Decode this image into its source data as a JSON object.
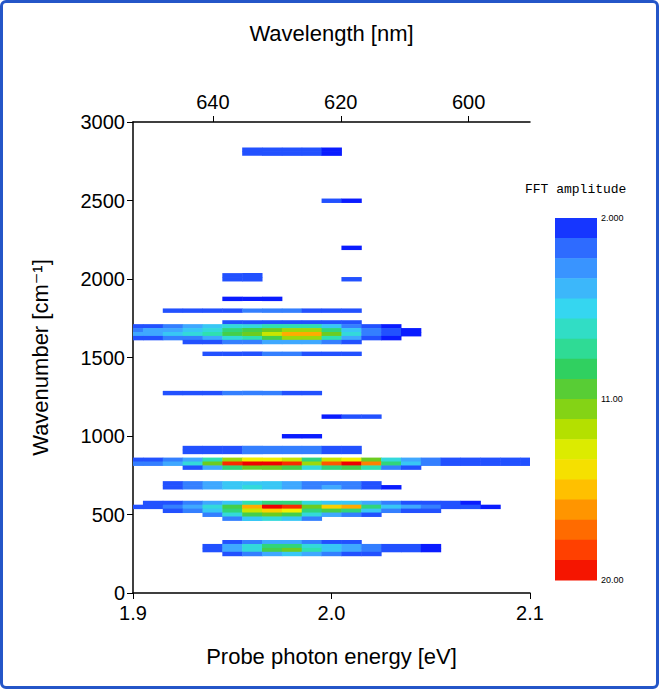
{
  "chart_data": {
    "type": "heatmap",
    "xlabel": "Probe photon energy [eV]",
    "ylabel": "Wavenumber [cm⁻¹]",
    "x2label": "Wavelength [nm]",
    "xlim": [
      1.9,
      2.1
    ],
    "xticks": [
      1.9,
      {
        "value": 2.0,
        "label": "2.0"
      },
      2.1
    ],
    "ylim": [
      0,
      3000
    ],
    "yticks": [
      0,
      500,
      1000,
      1500,
      2000,
      2500,
      3000
    ],
    "x2lim": [
      652.5,
      590.4
    ],
    "x2ticks": [
      640,
      620,
      600
    ],
    "grid": false,
    "colorbar": {
      "label": "FFT amplitude",
      "lim": [
        2,
        20
      ],
      "ticks": [
        {
          "value": 2,
          "label": "2.000"
        },
        {
          "value": 11,
          "label": "11.00"
        },
        {
          "value": 20,
          "label": "20.00"
        }
      ]
    },
    "cells": [
      [
        1.96,
        2825,
        3
      ],
      [
        1.97,
        2825,
        3
      ],
      [
        1.98,
        2825,
        3
      ],
      [
        1.99,
        2825,
        3
      ],
      [
        2.0,
        2825,
        2
      ],
      [
        1.96,
        2800,
        3
      ],
      [
        1.97,
        2800,
        3
      ],
      [
        1.98,
        2800,
        3
      ],
      [
        1.99,
        2800,
        3
      ],
      [
        2.0,
        2800,
        2
      ],
      [
        2.0,
        2500,
        3
      ],
      [
        2.01,
        2500,
        2
      ],
      [
        2.01,
        2200,
        2
      ],
      [
        1.95,
        2025,
        3
      ],
      [
        1.96,
        2025,
        3
      ],
      [
        1.95,
        2000,
        3
      ],
      [
        1.96,
        2000,
        3
      ],
      [
        2.01,
        2000,
        3
      ],
      [
        1.95,
        1875,
        2
      ],
      [
        1.96,
        1875,
        2
      ],
      [
        1.97,
        1875,
        2
      ],
      [
        1.92,
        1800,
        3
      ],
      [
        1.93,
        1800,
        3
      ],
      [
        1.94,
        1800,
        3
      ],
      [
        1.95,
        1800,
        3
      ],
      [
        1.96,
        1800,
        4
      ],
      [
        1.97,
        1800,
        4
      ],
      [
        1.98,
        1800,
        4
      ],
      [
        1.99,
        1800,
        3
      ],
      [
        2.0,
        1800,
        3
      ],
      [
        2.01,
        1800,
        3
      ],
      [
        1.95,
        1725,
        3
      ],
      [
        1.96,
        1725,
        3
      ],
      [
        1.97,
        1725,
        3
      ],
      [
        1.98,
        1725,
        3
      ],
      [
        1.99,
        1725,
        3
      ],
      [
        2.0,
        1725,
        3
      ],
      [
        2.01,
        1725,
        3
      ],
      [
        1.9,
        1700,
        3
      ],
      [
        1.91,
        1700,
        3
      ],
      [
        1.92,
        1700,
        4
      ],
      [
        1.93,
        1700,
        5
      ],
      [
        1.94,
        1700,
        6
      ],
      [
        1.95,
        1700,
        7
      ],
      [
        1.96,
        1700,
        7
      ],
      [
        1.97,
        1700,
        8
      ],
      [
        1.98,
        1700,
        8
      ],
      [
        1.99,
        1700,
        8
      ],
      [
        2.0,
        1700,
        6
      ],
      [
        2.01,
        1700,
        4
      ],
      [
        2.02,
        1700,
        3
      ],
      [
        2.03,
        1700,
        2
      ],
      [
        1.9,
        1675,
        4
      ],
      [
        1.91,
        1675,
        5
      ],
      [
        1.92,
        1675,
        5
      ],
      [
        1.93,
        1675,
        6
      ],
      [
        1.94,
        1675,
        7
      ],
      [
        1.95,
        1675,
        9
      ],
      [
        1.96,
        1675,
        10
      ],
      [
        1.97,
        1675,
        11
      ],
      [
        1.98,
        1675,
        12
      ],
      [
        1.99,
        1675,
        12
      ],
      [
        2.0,
        1675,
        9
      ],
      [
        2.01,
        1675,
        6
      ],
      [
        2.02,
        1675,
        4
      ],
      [
        2.03,
        1675,
        3
      ],
      [
        2.04,
        1675,
        2
      ],
      [
        1.9,
        1650,
        5
      ],
      [
        1.91,
        1650,
        5
      ],
      [
        1.92,
        1650,
        6
      ],
      [
        1.93,
        1650,
        7
      ],
      [
        1.94,
        1650,
        8
      ],
      [
        1.95,
        1650,
        10
      ],
      [
        1.96,
        1650,
        11
      ],
      [
        1.97,
        1650,
        13
      ],
      [
        1.98,
        1650,
        16
      ],
      [
        1.99,
        1650,
        16
      ],
      [
        2.0,
        1650,
        11
      ],
      [
        2.01,
        1650,
        7
      ],
      [
        2.02,
        1650,
        4
      ],
      [
        2.03,
        1650,
        3
      ],
      [
        2.04,
        1650,
        2
      ],
      [
        1.9,
        1625,
        3
      ],
      [
        1.91,
        1625,
        3
      ],
      [
        1.92,
        1625,
        4
      ],
      [
        1.93,
        1625,
        4
      ],
      [
        1.94,
        1625,
        5
      ],
      [
        1.95,
        1625,
        7
      ],
      [
        1.96,
        1625,
        8
      ],
      [
        1.97,
        1625,
        10
      ],
      [
        1.98,
        1625,
        12
      ],
      [
        1.99,
        1625,
        12
      ],
      [
        2.0,
        1625,
        8
      ],
      [
        2.01,
        1625,
        5
      ],
      [
        2.02,
        1625,
        3
      ],
      [
        2.03,
        1625,
        2
      ],
      [
        1.93,
        1600,
        3
      ],
      [
        1.94,
        1600,
        3
      ],
      [
        1.95,
        1600,
        4
      ],
      [
        1.96,
        1600,
        4
      ],
      [
        1.97,
        1600,
        5
      ],
      [
        1.98,
        1600,
        5
      ],
      [
        1.99,
        1600,
        5
      ],
      [
        2.0,
        1600,
        4
      ],
      [
        2.01,
        1600,
        3
      ],
      [
        1.94,
        1525,
        3
      ],
      [
        1.95,
        1525,
        3
      ],
      [
        1.96,
        1525,
        3
      ],
      [
        1.97,
        1525,
        4
      ],
      [
        1.98,
        1525,
        4
      ],
      [
        1.99,
        1525,
        3
      ],
      [
        2.0,
        1525,
        3
      ],
      [
        2.01,
        1525,
        3
      ],
      [
        1.92,
        1275,
        3
      ],
      [
        1.93,
        1275,
        3
      ],
      [
        1.94,
        1275,
        3
      ],
      [
        1.95,
        1275,
        4
      ],
      [
        1.96,
        1275,
        4
      ],
      [
        1.97,
        1275,
        4
      ],
      [
        1.98,
        1275,
        3
      ],
      [
        1.99,
        1275,
        3
      ],
      [
        2.0,
        1125,
        2
      ],
      [
        2.01,
        1125,
        3
      ],
      [
        2.02,
        1125,
        3
      ],
      [
        1.98,
        1000,
        2
      ],
      [
        1.99,
        1000,
        2
      ],
      [
        1.93,
        925,
        3
      ],
      [
        1.94,
        925,
        3
      ],
      [
        1.95,
        925,
        3
      ],
      [
        1.96,
        925,
        4
      ],
      [
        1.97,
        925,
        4
      ],
      [
        1.98,
        925,
        4
      ],
      [
        1.99,
        925,
        4
      ],
      [
        2.0,
        925,
        3
      ],
      [
        2.01,
        925,
        3
      ],
      [
        1.93,
        900,
        3
      ],
      [
        1.94,
        900,
        3
      ],
      [
        1.95,
        900,
        3
      ],
      [
        1.96,
        900,
        4
      ],
      [
        1.97,
        900,
        4
      ],
      [
        1.98,
        900,
        4
      ],
      [
        1.99,
        900,
        4
      ],
      [
        2.0,
        900,
        3
      ],
      [
        2.01,
        900,
        3
      ],
      [
        1.9,
        850,
        3
      ],
      [
        1.91,
        850,
        3
      ],
      [
        1.92,
        850,
        4
      ],
      [
        1.93,
        850,
        5
      ],
      [
        1.94,
        850,
        8
      ],
      [
        1.95,
        850,
        12
      ],
      [
        1.96,
        850,
        14
      ],
      [
        1.97,
        850,
        14
      ],
      [
        1.98,
        850,
        13
      ],
      [
        1.99,
        850,
        9
      ],
      [
        2.0,
        850,
        13
      ],
      [
        2.01,
        850,
        14
      ],
      [
        2.02,
        850,
        11
      ],
      [
        2.03,
        850,
        7
      ],
      [
        2.04,
        850,
        5
      ],
      [
        2.05,
        850,
        4
      ],
      [
        2.06,
        850,
        3
      ],
      [
        2.07,
        850,
        3
      ],
      [
        2.08,
        850,
        3
      ],
      [
        2.09,
        850,
        3
      ],
      [
        2.1,
        850,
        3
      ],
      [
        1.9,
        825,
        4
      ],
      [
        1.91,
        825,
        4
      ],
      [
        1.92,
        825,
        5
      ],
      [
        1.93,
        825,
        7
      ],
      [
        1.94,
        825,
        11
      ],
      [
        1.95,
        825,
        19
      ],
      [
        1.96,
        825,
        20
      ],
      [
        1.97,
        825,
        20
      ],
      [
        1.98,
        825,
        19
      ],
      [
        1.99,
        825,
        12
      ],
      [
        2.0,
        825,
        18
      ],
      [
        2.01,
        825,
        20
      ],
      [
        2.02,
        825,
        17
      ],
      [
        2.03,
        825,
        9
      ],
      [
        2.04,
        825,
        6
      ],
      [
        2.05,
        825,
        4
      ],
      [
        2.06,
        825,
        3
      ],
      [
        2.07,
        825,
        3
      ],
      [
        2.08,
        825,
        3
      ],
      [
        2.09,
        825,
        3
      ],
      [
        2.1,
        825,
        3
      ],
      [
        1.93,
        800,
        3
      ],
      [
        1.94,
        800,
        5
      ],
      [
        1.95,
        800,
        9
      ],
      [
        1.96,
        800,
        11
      ],
      [
        1.97,
        800,
        11
      ],
      [
        1.98,
        800,
        10
      ],
      [
        1.99,
        800,
        7
      ],
      [
        2.0,
        800,
        9
      ],
      [
        2.01,
        800,
        10
      ],
      [
        2.02,
        800,
        8
      ],
      [
        2.03,
        800,
        4
      ],
      [
        2.04,
        800,
        3
      ],
      [
        1.92,
        700,
        3
      ],
      [
        1.93,
        700,
        4
      ],
      [
        1.94,
        700,
        5
      ],
      [
        1.95,
        700,
        6
      ],
      [
        1.96,
        700,
        6
      ],
      [
        1.97,
        700,
        6
      ],
      [
        1.98,
        700,
        5
      ],
      [
        1.99,
        700,
        4
      ],
      [
        2.0,
        700,
        4
      ],
      [
        2.01,
        700,
        4
      ],
      [
        2.02,
        700,
        3
      ],
      [
        1.92,
        675,
        3
      ],
      [
        1.93,
        675,
        4
      ],
      [
        1.94,
        675,
        5
      ],
      [
        1.95,
        675,
        6
      ],
      [
        1.96,
        675,
        7
      ],
      [
        1.97,
        675,
        6
      ],
      [
        1.98,
        675,
        5
      ],
      [
        1.99,
        675,
        4
      ],
      [
        2.0,
        675,
        5
      ],
      [
        2.01,
        675,
        4
      ],
      [
        2.02,
        675,
        3
      ],
      [
        2.03,
        675,
        2
      ],
      [
        1.91,
        575,
        3
      ],
      [
        1.92,
        575,
        3
      ],
      [
        1.93,
        575,
        4
      ],
      [
        1.94,
        575,
        5
      ],
      [
        1.95,
        575,
        6
      ],
      [
        1.96,
        575,
        8
      ],
      [
        1.97,
        575,
        9
      ],
      [
        1.98,
        575,
        9
      ],
      [
        1.99,
        575,
        7
      ],
      [
        2.0,
        575,
        6
      ],
      [
        2.01,
        575,
        6
      ],
      [
        2.02,
        575,
        5
      ],
      [
        2.03,
        575,
        4
      ],
      [
        2.04,
        575,
        3
      ],
      [
        2.05,
        575,
        3
      ],
      [
        2.06,
        575,
        3
      ],
      [
        2.07,
        575,
        2
      ],
      [
        1.9,
        550,
        3
      ],
      [
        1.91,
        550,
        3
      ],
      [
        1.92,
        550,
        4
      ],
      [
        1.93,
        550,
        5
      ],
      [
        1.94,
        550,
        7
      ],
      [
        1.95,
        550,
        10
      ],
      [
        1.96,
        550,
        16
      ],
      [
        1.97,
        550,
        20
      ],
      [
        1.98,
        550,
        19
      ],
      [
        1.99,
        550,
        11
      ],
      [
        2.0,
        550,
        15
      ],
      [
        2.01,
        550,
        16
      ],
      [
        2.02,
        550,
        9
      ],
      [
        2.03,
        550,
        6
      ],
      [
        2.04,
        550,
        5
      ],
      [
        2.05,
        550,
        4
      ],
      [
        2.06,
        550,
        3
      ],
      [
        2.07,
        550,
        3
      ],
      [
        2.08,
        550,
        2
      ],
      [
        1.92,
        525,
        3
      ],
      [
        1.93,
        525,
        4
      ],
      [
        1.94,
        525,
        6
      ],
      [
        1.95,
        525,
        9
      ],
      [
        1.96,
        525,
        13
      ],
      [
        1.97,
        525,
        15
      ],
      [
        1.98,
        525,
        14
      ],
      [
        1.99,
        525,
        9
      ],
      [
        2.0,
        525,
        10
      ],
      [
        2.01,
        525,
        9
      ],
      [
        2.02,
        525,
        6
      ],
      [
        2.03,
        525,
        4
      ],
      [
        2.04,
        525,
        3
      ],
      [
        2.05,
        525,
        3
      ],
      [
        1.94,
        500,
        4
      ],
      [
        1.95,
        500,
        7
      ],
      [
        1.96,
        500,
        10
      ],
      [
        1.97,
        500,
        11
      ],
      [
        1.98,
        500,
        10
      ],
      [
        1.99,
        500,
        7
      ],
      [
        2.0,
        500,
        5
      ],
      [
        2.01,
        500,
        4
      ],
      [
        2.02,
        500,
        3
      ],
      [
        1.95,
        475,
        4
      ],
      [
        1.96,
        475,
        6
      ],
      [
        1.97,
        475,
        7
      ],
      [
        1.98,
        475,
        6
      ],
      [
        1.99,
        475,
        4
      ],
      [
        1.95,
        325,
        3
      ],
      [
        1.96,
        325,
        4
      ],
      [
        1.97,
        325,
        5
      ],
      [
        1.98,
        325,
        5
      ],
      [
        1.99,
        325,
        4
      ],
      [
        2.0,
        325,
        3
      ],
      [
        2.01,
        325,
        3
      ],
      [
        1.94,
        300,
        3
      ],
      [
        1.95,
        300,
        5
      ],
      [
        1.96,
        300,
        7
      ],
      [
        1.97,
        300,
        9
      ],
      [
        1.98,
        300,
        9
      ],
      [
        1.99,
        300,
        7
      ],
      [
        2.0,
        300,
        6
      ],
      [
        2.01,
        300,
        5
      ],
      [
        2.02,
        300,
        4
      ],
      [
        2.03,
        300,
        3
      ],
      [
        2.04,
        300,
        3
      ],
      [
        2.05,
        300,
        2
      ],
      [
        1.94,
        275,
        3
      ],
      [
        1.95,
        275,
        5
      ],
      [
        1.96,
        275,
        7
      ],
      [
        1.97,
        275,
        10
      ],
      [
        1.98,
        275,
        11
      ],
      [
        1.99,
        275,
        8
      ],
      [
        2.0,
        275,
        6
      ],
      [
        2.01,
        275,
        5
      ],
      [
        2.02,
        275,
        4
      ],
      [
        2.03,
        275,
        3
      ],
      [
        2.04,
        275,
        3
      ],
      [
        2.05,
        275,
        2
      ],
      [
        1.95,
        250,
        3
      ],
      [
        1.96,
        250,
        4
      ],
      [
        1.97,
        250,
        5
      ],
      [
        1.98,
        250,
        6
      ],
      [
        1.99,
        250,
        5
      ],
      [
        2.0,
        250,
        4
      ],
      [
        2.01,
        250,
        3
      ],
      [
        2.02,
        250,
        3
      ]
    ]
  }
}
